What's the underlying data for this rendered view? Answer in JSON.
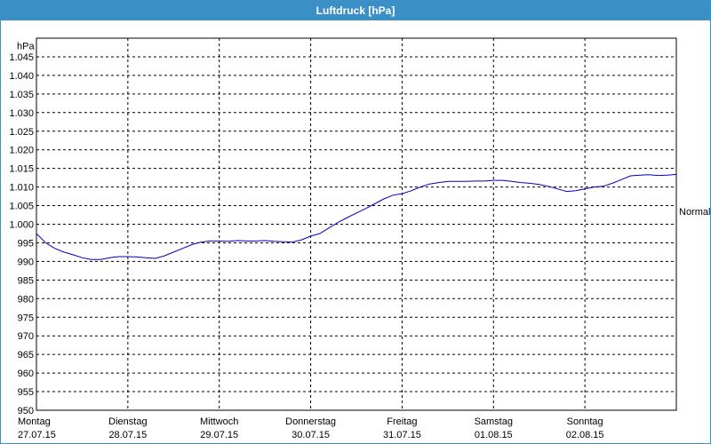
{
  "window": {
    "title": "Luftdruck [hPa]"
  },
  "colors": {
    "titlebar": "#3a8fc6",
    "series": "#0000c0"
  },
  "chart_data": {
    "type": "line",
    "title": "Luftdruck [hPa]",
    "ylabel": "hPa",
    "ylim": [
      950,
      1050
    ],
    "yticks": [
      "1.045",
      "1.040",
      "1.035",
      "1.030",
      "1.025",
      "1.020",
      "1.015",
      "1.010",
      "1.005",
      "1.000",
      "995",
      "990",
      "985",
      "980",
      "975",
      "970",
      "965",
      "960",
      "955",
      "950"
    ],
    "yticks_values": [
      1045,
      1040,
      1035,
      1030,
      1025,
      1020,
      1015,
      1010,
      1005,
      1000,
      995,
      990,
      985,
      980,
      975,
      970,
      965,
      960,
      955,
      950
    ],
    "xlim": [
      0,
      7
    ],
    "xticks": [
      {
        "day": "Montag",
        "date": "27.07.15",
        "pos": 0
      },
      {
        "day": "Dienstag",
        "date": "28.07.15",
        "pos": 1
      },
      {
        "day": "Mittwoch",
        "date": "29.07.15",
        "pos": 2
      },
      {
        "day": "Donnerstag",
        "date": "30.07.15",
        "pos": 3
      },
      {
        "day": "Freitag",
        "date": "31.07.15",
        "pos": 4
      },
      {
        "day": "Samstag",
        "date": "01.08.15",
        "pos": 5
      },
      {
        "day": "Sonntag",
        "date": "02.08.15",
        "pos": 6
      }
    ],
    "reference": {
      "label": "Normal",
      "value": 1003.5
    },
    "grid": true,
    "series": [
      {
        "x": [
          0,
          0.1,
          0.2,
          0.3,
          0.4,
          0.5,
          0.6,
          0.7,
          0.8,
          0.9,
          1.0,
          1.1,
          1.2,
          1.3,
          1.4,
          1.5,
          1.6,
          1.7,
          1.8,
          1.9,
          2.0,
          2.1,
          2.2,
          2.3,
          2.4,
          2.5,
          2.6,
          2.7,
          2.8,
          2.9,
          3.0,
          3.1,
          3.2,
          3.3,
          3.4,
          3.5,
          3.6,
          3.7,
          3.8,
          3.9,
          4.0,
          4.1,
          4.2,
          4.3,
          4.4,
          4.5,
          4.6,
          4.7,
          4.8,
          4.9,
          5.0,
          5.1,
          5.2,
          5.3,
          5.4,
          5.5,
          5.6,
          5.7,
          5.8,
          5.9,
          6.0,
          6.1,
          6.2,
          6.3,
          6.4,
          6.5,
          6.6,
          6.7,
          6.8,
          6.9,
          7.0
        ],
        "y": [
          997.5,
          995,
          993.5,
          992.5,
          991.8,
          991,
          990.5,
          990.5,
          991,
          991.3,
          991.3,
          991.2,
          991,
          990.8,
          991.5,
          992.5,
          993.5,
          994.5,
          995.2,
          995.5,
          995.5,
          995.4,
          995.6,
          995.5,
          995.5,
          995.6,
          995.4,
          995.3,
          995.2,
          995.8,
          996.8,
          997.5,
          999,
          1000.5,
          1001.8,
          1003,
          1004.2,
          1005.5,
          1006.8,
          1007.8,
          1008.2,
          1009,
          1010,
          1010.8,
          1011.2,
          1011.5,
          1011.5,
          1011.5,
          1011.6,
          1011.6,
          1011.8,
          1011.8,
          1011.5,
          1011.2,
          1011.0,
          1010.7,
          1010.2,
          1009.5,
          1008.8,
          1009.0,
          1009.5,
          1010.0,
          1010.2,
          1011.0,
          1012.0,
          1013.0,
          1013.2,
          1013.3,
          1013.1,
          1013.2,
          1013.4
        ]
      }
    ]
  }
}
